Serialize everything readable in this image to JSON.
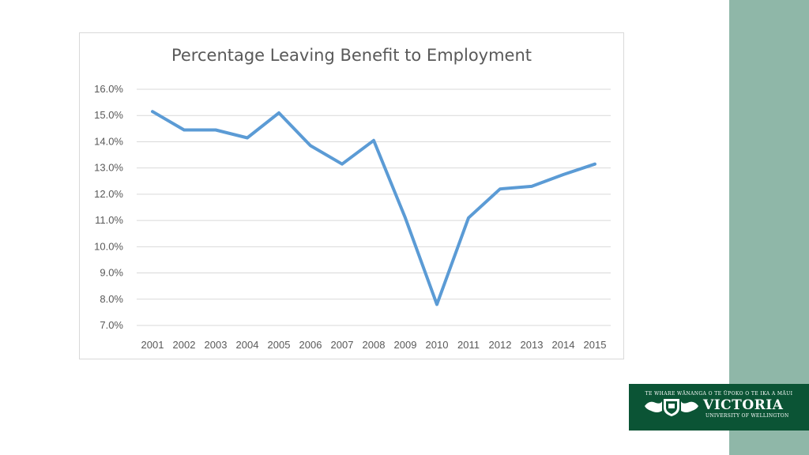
{
  "theme": {
    "sidebar_color": "#8fb7a8",
    "line_color": "#5b9bd5",
    "logo_bg": "#0b5435"
  },
  "chart_data": {
    "type": "line",
    "title": "Percentage Leaving Benefit to Employment",
    "categories": [
      "2001",
      "2002",
      "2003",
      "2004",
      "2005",
      "2006",
      "2007",
      "2008",
      "2009",
      "2010",
      "2011",
      "2012",
      "2013",
      "2014",
      "2015"
    ],
    "series": [
      {
        "values": [
          15.15,
          14.45,
          14.45,
          14.15,
          15.1,
          13.85,
          13.15,
          14.05,
          11.1,
          7.8,
          11.1,
          12.2,
          12.3,
          12.75,
          13.15
        ]
      }
    ],
    "ylim": [
      7.0,
      16.0
    ],
    "yticks": [
      "16.0%",
      "15.0%",
      "14.0%",
      "13.0%",
      "12.0%",
      "11.0%",
      "10.0%",
      "9.0%",
      "8.0%",
      "7.0%"
    ],
    "ytick_values": [
      16,
      15,
      14,
      13,
      12,
      11,
      10,
      9,
      8,
      7
    ],
    "grid": true,
    "xlabel": "",
    "ylabel": ""
  },
  "logo": {
    "tagline": "TE WHARE WĀNANGA O TE ŪPOKO O TE IKA A MĀUI",
    "name": "VICTORIA",
    "subtitle": "UNIVERSITY OF WELLINGTON"
  }
}
